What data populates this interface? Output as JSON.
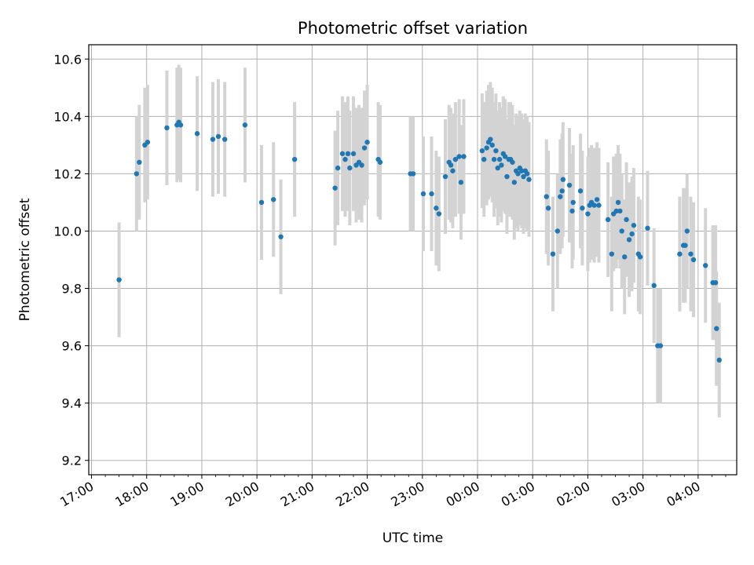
{
  "chart_data": {
    "type": "scatter",
    "title": "Photometric offset variation",
    "xlabel": "UTC time",
    "ylabel": "Photometric offset",
    "x_axis": "time (hours since 17:00 UTC, spanning midnight)",
    "xlim": [
      -0.05,
      11.7
    ],
    "ylim": [
      9.15,
      10.65
    ],
    "grid": true,
    "x_ticks": [
      0,
      1,
      2,
      3,
      4,
      5,
      6,
      7,
      8,
      9,
      10,
      11
    ],
    "x_tick_labels": [
      "17:00",
      "18:00",
      "19:00",
      "20:00",
      "21:00",
      "22:00",
      "23:00",
      "00:00",
      "01:00",
      "02:00",
      "03:00",
      "04:00"
    ],
    "y_ticks": [
      9.2,
      9.4,
      9.6,
      9.8,
      10.0,
      10.2,
      10.4,
      10.6
    ],
    "y_tick_labels": [
      "9.2",
      "9.4",
      "9.6",
      "9.8",
      "10.0",
      "10.2",
      "10.4",
      "10.6"
    ],
    "colors": {
      "points": "#1f77b4",
      "error_bars": "#d3d3d3",
      "grid": "#b0b0b0"
    },
    "series": [
      {
        "marker": "point",
        "error_bar_halfwidth": 0.2,
        "points": [
          {
            "t": "17:30",
            "y": 9.83
          },
          {
            "t": "17:49",
            "y": 10.2
          },
          {
            "t": "17:52",
            "y": 10.24
          },
          {
            "t": "17:58",
            "y": 10.3
          },
          {
            "t": "18:01",
            "y": 10.31
          },
          {
            "t": "18:22",
            "y": 10.36
          },
          {
            "t": "18:33",
            "y": 10.37
          },
          {
            "t": "18:35",
            "y": 10.38
          },
          {
            "t": "18:37",
            "y": 10.37
          },
          {
            "t": "18:55",
            "y": 10.34
          },
          {
            "t": "19:12",
            "y": 10.32
          },
          {
            "t": "19:18",
            "y": 10.33
          },
          {
            "t": "19:25",
            "y": 10.32
          },
          {
            "t": "19:47",
            "y": 10.37
          },
          {
            "t": "20:05",
            "y": 10.1
          },
          {
            "t": "20:18",
            "y": 10.11
          },
          {
            "t": "20:26",
            "y": 9.98
          },
          {
            "t": "20:41",
            "y": 10.25
          },
          {
            "t": "21:25",
            "y": 10.15
          },
          {
            "t": "21:28",
            "y": 10.22
          },
          {
            "t": "21:33",
            "y": 10.27
          },
          {
            "t": "21:36",
            "y": 10.25
          },
          {
            "t": "21:39",
            "y": 10.27
          },
          {
            "t": "21:41",
            "y": 10.22
          },
          {
            "t": "21:45",
            "y": 10.27
          },
          {
            "t": "21:48",
            "y": 10.23
          },
          {
            "t": "21:51",
            "y": 10.24
          },
          {
            "t": "21:54",
            "y": 10.23
          },
          {
            "t": "21:57",
            "y": 10.29
          },
          {
            "t": "22:00",
            "y": 10.31
          },
          {
            "t": "22:12",
            "y": 10.25
          },
          {
            "t": "22:14",
            "y": 10.24
          },
          {
            "t": "22:47",
            "y": 10.2
          },
          {
            "t": "22:50",
            "y": 10.2
          },
          {
            "t": "23:01",
            "y": 10.13
          },
          {
            "t": "23:10",
            "y": 10.13
          },
          {
            "t": "23:15",
            "y": 10.08
          },
          {
            "t": "23:18",
            "y": 10.06
          },
          {
            "t": "23:25",
            "y": 10.19
          },
          {
            "t": "23:29",
            "y": 10.24
          },
          {
            "t": "23:31",
            "y": 10.23
          },
          {
            "t": "23:33",
            "y": 10.21
          },
          {
            "t": "23:36",
            "y": 10.25
          },
          {
            "t": "23:40",
            "y": 10.26
          },
          {
            "t": "23:42",
            "y": 10.17
          },
          {
            "t": "23:45",
            "y": 10.26
          },
          {
            "t": "00:05",
            "y": 10.28
          },
          {
            "t": "00:07",
            "y": 10.25
          },
          {
            "t": "00:10",
            "y": 10.29
          },
          {
            "t": "00:12",
            "y": 10.31
          },
          {
            "t": "00:14",
            "y": 10.32
          },
          {
            "t": "00:16",
            "y": 10.3
          },
          {
            "t": "00:18",
            "y": 10.25
          },
          {
            "t": "00:20",
            "y": 10.28
          },
          {
            "t": "00:22",
            "y": 10.22
          },
          {
            "t": "00:24",
            "y": 10.25
          },
          {
            "t": "00:26",
            "y": 10.23
          },
          {
            "t": "00:28",
            "y": 10.27
          },
          {
            "t": "00:30",
            "y": 10.26
          },
          {
            "t": "00:32",
            "y": 10.19
          },
          {
            "t": "00:34",
            "y": 10.25
          },
          {
            "t": "00:36",
            "y": 10.25
          },
          {
            "t": "00:38",
            "y": 10.24
          },
          {
            "t": "00:40",
            "y": 10.17
          },
          {
            "t": "00:42",
            "y": 10.21
          },
          {
            "t": "00:44",
            "y": 10.2
          },
          {
            "t": "00:46",
            "y": 10.22
          },
          {
            "t": "00:48",
            "y": 10.21
          },
          {
            "t": "00:50",
            "y": 10.19
          },
          {
            "t": "00:52",
            "y": 10.21
          },
          {
            "t": "00:54",
            "y": 10.2
          },
          {
            "t": "00:56",
            "y": 10.18
          },
          {
            "t": "01:15",
            "y": 10.12
          },
          {
            "t": "01:17",
            "y": 10.08
          },
          {
            "t": "01:22",
            "y": 9.92
          },
          {
            "t": "01:27",
            "y": 10.0
          },
          {
            "t": "01:30",
            "y": 10.12
          },
          {
            "t": "01:32",
            "y": 10.14
          },
          {
            "t": "01:33",
            "y": 10.18
          },
          {
            "t": "01:40",
            "y": 10.16
          },
          {
            "t": "01:43",
            "y": 10.07
          },
          {
            "t": "01:44",
            "y": 10.1
          },
          {
            "t": "01:52",
            "y": 10.14
          },
          {
            "t": "01:54",
            "y": 10.08
          },
          {
            "t": "02:00",
            "y": 10.06
          },
          {
            "t": "02:02",
            "y": 10.09
          },
          {
            "t": "02:04",
            "y": 10.1
          },
          {
            "t": "02:07",
            "y": 10.09
          },
          {
            "t": "02:10",
            "y": 10.11
          },
          {
            "t": "02:12",
            "y": 10.09
          },
          {
            "t": "02:22",
            "y": 10.04
          },
          {
            "t": "02:26",
            "y": 9.92
          },
          {
            "t": "02:28",
            "y": 10.06
          },
          {
            "t": "02:31",
            "y": 10.07
          },
          {
            "t": "02:33",
            "y": 10.1
          },
          {
            "t": "02:35",
            "y": 10.07
          },
          {
            "t": "02:37",
            "y": 10.0
          },
          {
            "t": "02:40",
            "y": 9.91
          },
          {
            "t": "02:42",
            "y": 10.04
          },
          {
            "t": "02:45",
            "y": 9.97
          },
          {
            "t": "02:48",
            "y": 9.99
          },
          {
            "t": "02:50",
            "y": 10.02
          },
          {
            "t": "02:55",
            "y": 9.92
          },
          {
            "t": "02:57",
            "y": 9.91
          },
          {
            "t": "03:05",
            "y": 10.01
          },
          {
            "t": "03:12",
            "y": 9.81
          },
          {
            "t": "03:16",
            "y": 9.6
          },
          {
            "t": "03:19",
            "y": 9.6
          },
          {
            "t": "03:40",
            "y": 9.92
          },
          {
            "t": "03:44",
            "y": 9.95
          },
          {
            "t": "03:46",
            "y": 9.95
          },
          {
            "t": "03:48",
            "y": 10.0
          },
          {
            "t": "03:52",
            "y": 9.92
          },
          {
            "t": "03:55",
            "y": 9.9
          },
          {
            "t": "04:08",
            "y": 9.88
          },
          {
            "t": "04:16",
            "y": 9.82
          },
          {
            "t": "04:19",
            "y": 9.82
          },
          {
            "t": "04:20",
            "y": 9.66
          },
          {
            "t": "04:23",
            "y": 9.55
          }
        ]
      }
    ]
  }
}
